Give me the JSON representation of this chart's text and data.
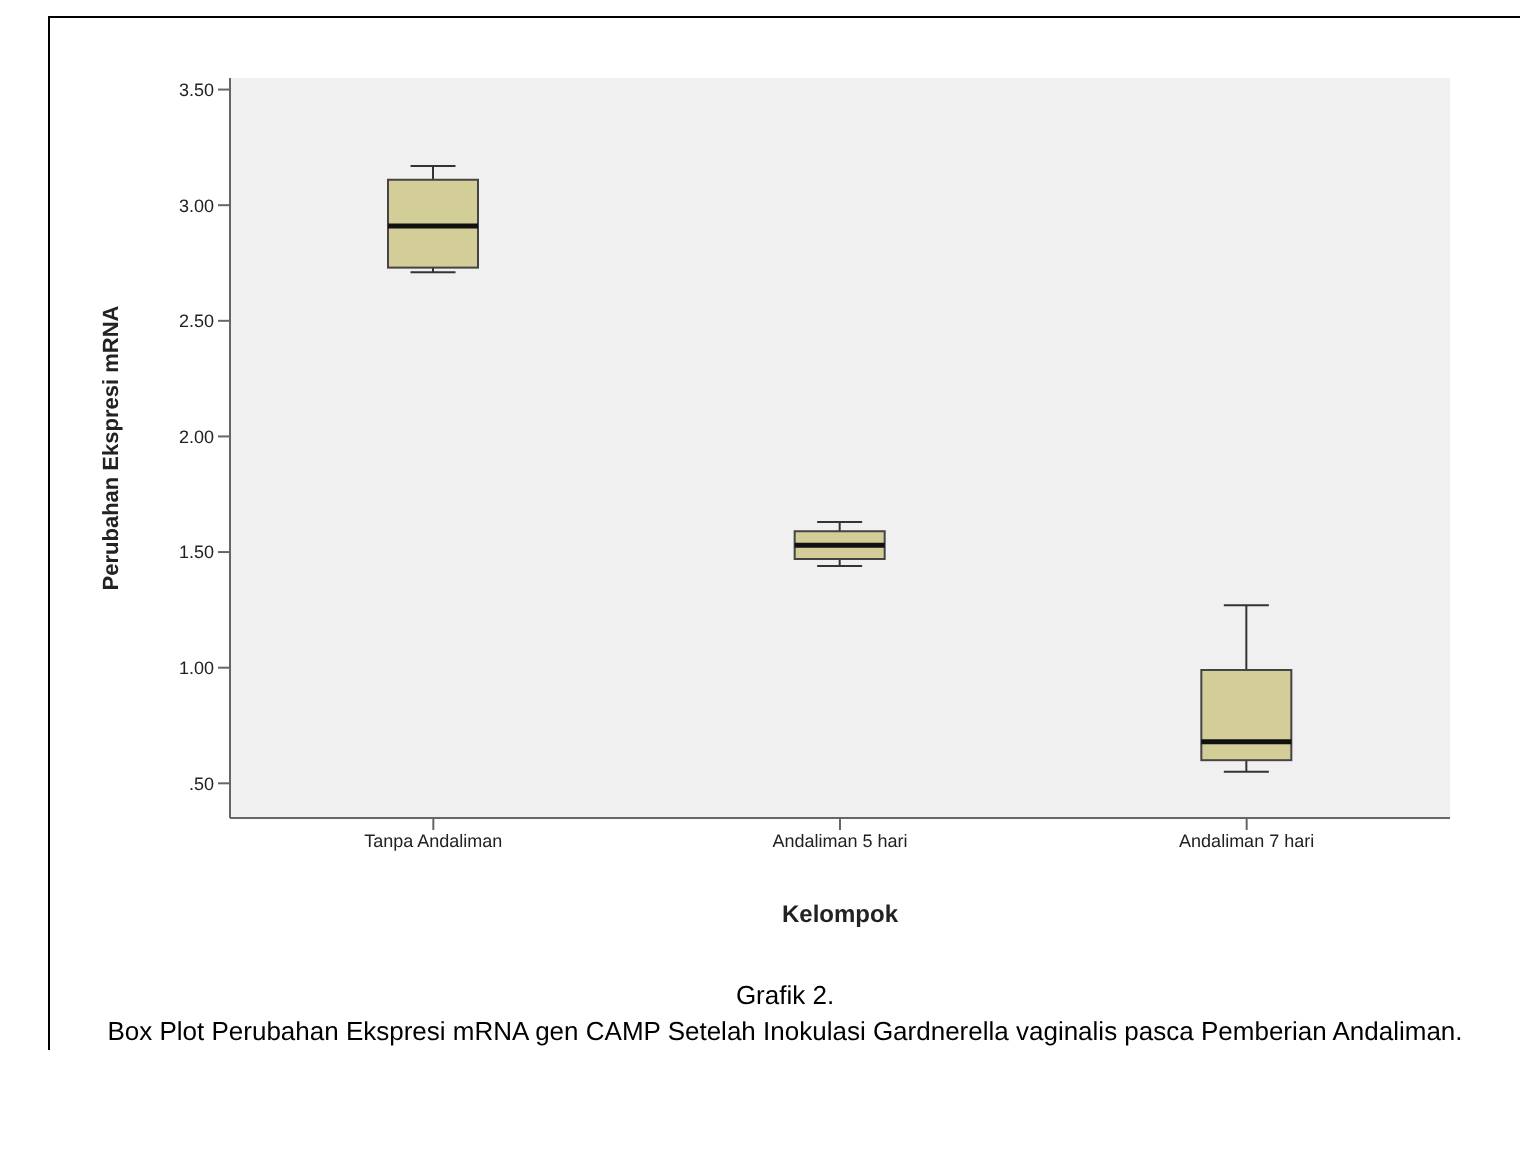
{
  "chart_data": {
    "type": "box",
    "xlabel": "Kelompok",
    "ylabel": "Perubahan Ekspresi mRNA",
    "categories": [
      "Tanpa Andaliman",
      "Andaliman 5 hari",
      "Andaliman 7 hari"
    ],
    "color": "#d3cd98",
    "boxes": [
      {
        "low": 2.71,
        "q1": 2.73,
        "median": 2.91,
        "q3": 3.11,
        "high": 3.17
      },
      {
        "low": 1.44,
        "q1": 1.47,
        "median": 1.53,
        "q3": 1.59,
        "high": 1.63
      },
      {
        "low": 0.55,
        "q1": 0.6,
        "median": 0.68,
        "q3": 0.99,
        "high": 1.27
      }
    ],
    "ylim": [
      0.35,
      3.55
    ],
    "yticks": [
      {
        "value": 0.5,
        "label": ".50"
      },
      {
        "value": 1,
        "label": "1.00"
      },
      {
        "value": 1.5,
        "label": "1.50"
      },
      {
        "value": 2,
        "label": "2.00"
      },
      {
        "value": 2.5,
        "label": "2.50"
      },
      {
        "value": 3,
        "label": "3.00"
      },
      {
        "value": 3.5,
        "label": "3.50"
      }
    ],
    "grid": false,
    "annotations": [
      "Grafik 2.",
      "Box Plot Perubahan Ekspresi mRNA  gen CAMP  Setelah Inokulasi Gardnerella vaginalis pasca Pemberian Andaliman."
    ]
  }
}
